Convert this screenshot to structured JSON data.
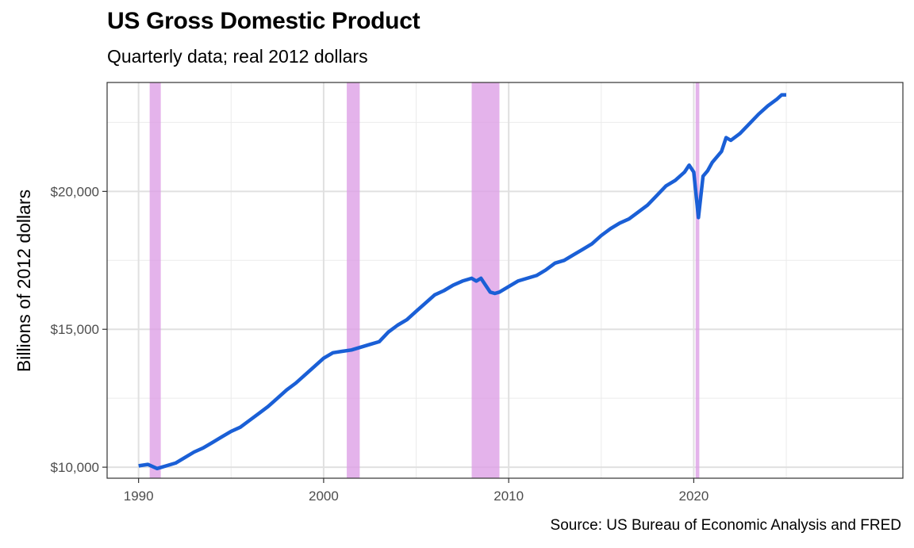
{
  "chart_data": {
    "type": "line",
    "title": "US Gross Domestic Product",
    "subtitle": "Quarterly data; real 2012 dollars",
    "xlabel": "",
    "ylabel": "Billions of 2012 dollars",
    "caption": "Source: US Bureau of Economic Analysis and FRED",
    "xlim": [
      1988.3,
      2031.3
    ],
    "ylim": [
      9600,
      23950
    ],
    "grid": true,
    "legend": "none",
    "x_ticks": [
      {
        "value": 1990,
        "label": "1990"
      },
      {
        "value": 2000,
        "label": "2000"
      },
      {
        "value": 2010,
        "label": "2010"
      },
      {
        "value": 2020,
        "label": "2020"
      }
    ],
    "y_ticks": [
      {
        "value": 10000,
        "label": "$10,000"
      },
      {
        "value": 15000,
        "label": "$15,000"
      },
      {
        "value": 20000,
        "label": "$20,000"
      }
    ],
    "recession_color": "#dda0e6",
    "line_color": "#1a5fd6",
    "recessions": [
      {
        "start": 1990.6,
        "end": 1991.2
      },
      {
        "start": 2001.25,
        "end": 2001.95
      },
      {
        "start": 2008.0,
        "end": 2009.5
      },
      {
        "start": 2020.1,
        "end": 2020.3
      }
    ],
    "series": [
      {
        "x": [
          1990.0,
          1990.5,
          1991.0,
          1991.5,
          1992.0,
          1992.5,
          1993.0,
          1993.5,
          1994.0,
          1994.5,
          1995.0,
          1995.5,
          1996.0,
          1996.5,
          1997.0,
          1997.5,
          1998.0,
          1998.5,
          1999.0,
          1999.5,
          2000.0,
          2000.5,
          2001.0,
          2001.5,
          2002.0,
          2002.5,
          2003.0,
          2003.5,
          2004.0,
          2004.5,
          2005.0,
          2005.5,
          2006.0,
          2006.5,
          2007.0,
          2007.5,
          2008.0,
          2008.25,
          2008.5,
          2008.75,
          2009.0,
          2009.25,
          2009.5,
          2010.0,
          2010.5,
          2011.0,
          2011.5,
          2012.0,
          2012.5,
          2013.0,
          2013.5,
          2014.0,
          2014.5,
          2015.0,
          2015.5,
          2016.0,
          2016.5,
          2017.0,
          2017.5,
          2018.0,
          2018.5,
          2019.0,
          2019.5,
          2019.75,
          2020.0,
          2020.25,
          2020.5,
          2020.75,
          2021.0,
          2021.5,
          2021.75,
          2022.0,
          2022.5,
          2023.0,
          2023.5,
          2024.0,
          2024.5,
          2024.75,
          2025.0
        ],
        "values": [
          10050,
          10100,
          9950,
          10050,
          10150,
          10350,
          10550,
          10700,
          10900,
          11100,
          11300,
          11450,
          11700,
          11950,
          12200,
          12500,
          12800,
          13050,
          13350,
          13650,
          13950,
          14150,
          14200,
          14250,
          14350,
          14450,
          14550,
          14900,
          15150,
          15350,
          15650,
          15950,
          16250,
          16400,
          16600,
          16750,
          16850,
          16750,
          16850,
          16600,
          16350,
          16300,
          16350,
          16550,
          16750,
          16850,
          16950,
          17150,
          17400,
          17500,
          17700,
          17900,
          18100,
          18400,
          18650,
          18850,
          19000,
          19250,
          19500,
          19850,
          20200,
          20400,
          20700,
          20950,
          20700,
          19050,
          20550,
          20750,
          21050,
          21450,
          21950,
          21850,
          22100,
          22450,
          22800,
          23100,
          23350,
          23500,
          23500
        ]
      }
    ]
  }
}
